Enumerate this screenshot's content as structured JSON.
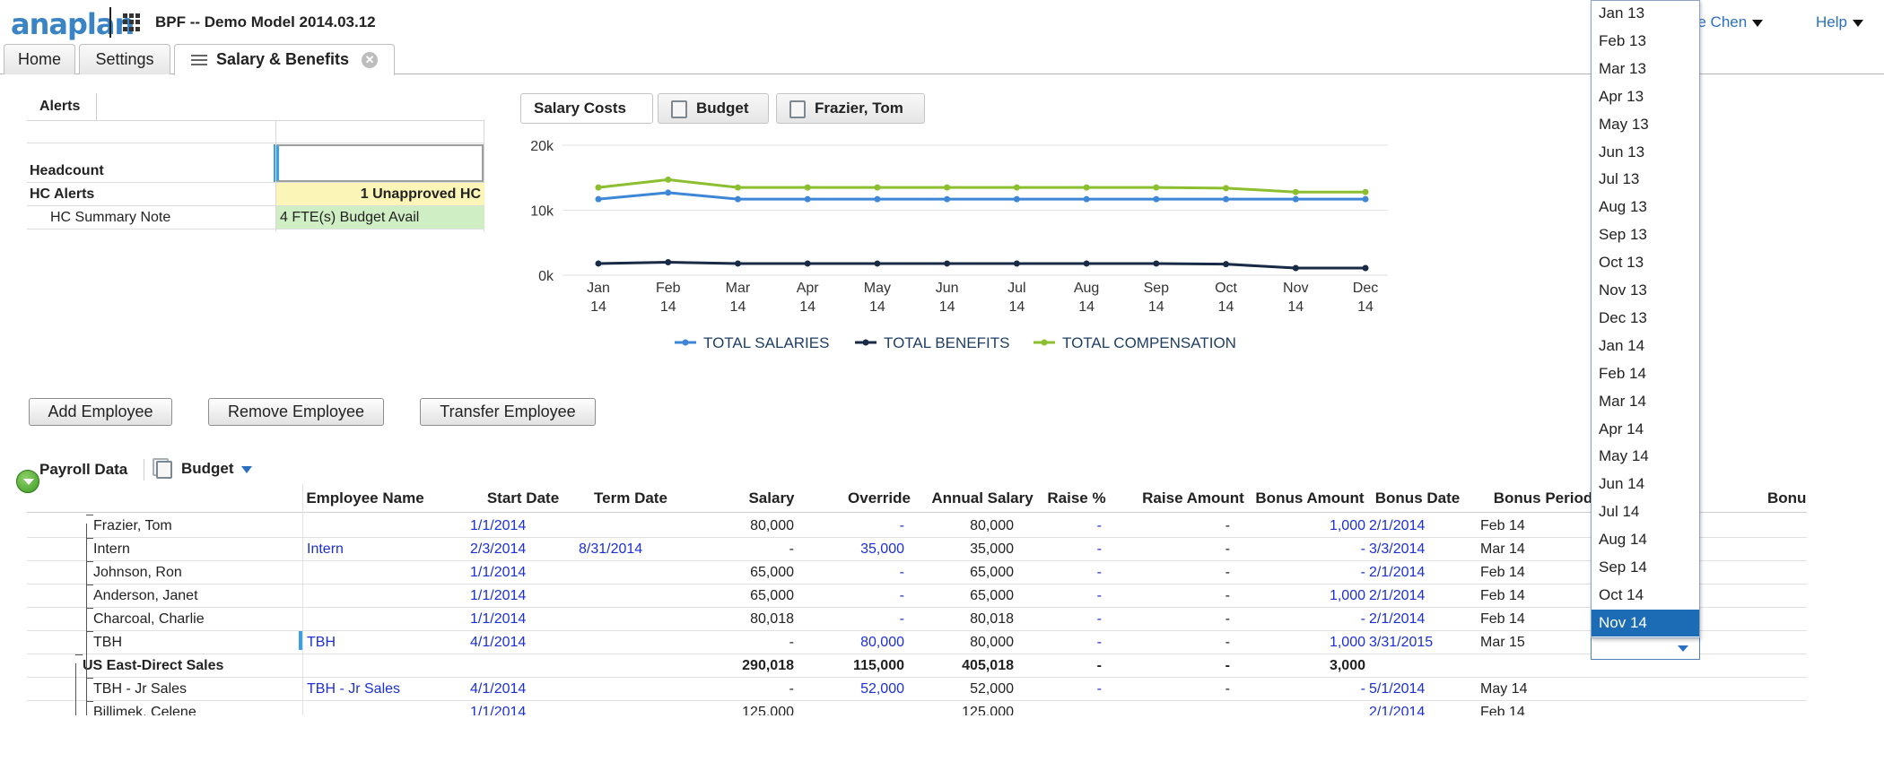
{
  "app": {
    "logo": "anaplan",
    "model_name": "BPF -- Demo Model 2014.03.12",
    "user_label": "onne Chen",
    "help_label": "Help"
  },
  "tabs": [
    {
      "label": "Home"
    },
    {
      "label": "Settings"
    },
    {
      "label": "Salary & Benefits"
    }
  ],
  "alerts": {
    "title": "Alerts",
    "rows": [
      {
        "label": "",
        "value": ""
      },
      {
        "label": "Headcount",
        "value": ""
      },
      {
        "label": "HC Alerts",
        "value": "1 Unapproved HC"
      },
      {
        "label": "HC Summary Note",
        "value": "4 FTE(s) Budget Avail"
      }
    ]
  },
  "chart_toolbar": {
    "chart_label": "Salary Costs",
    "budget_label": "Budget",
    "employee_label": "Frazier, Tom"
  },
  "chart_data": {
    "type": "line",
    "title": "",
    "xlabel": "",
    "ylabel": "",
    "categories": [
      "Jan 14",
      "Feb 14",
      "Mar 14",
      "Apr 14",
      "May 14",
      "Jun 14",
      "Jul 14",
      "Aug 14",
      "Sep 14",
      "Oct 14",
      "Nov 14",
      "Dec 14"
    ],
    "y_ticks": [
      "0k",
      "10k",
      "20k"
    ],
    "ylim": [
      0,
      20000
    ],
    "grid": true,
    "legend_position": "bottom",
    "series": [
      {
        "name": "TOTAL SALARIES",
        "color": "#3d87d6",
        "values": [
          11700,
          12700,
          11700,
          11700,
          11700,
          11700,
          11700,
          11700,
          11700,
          11700,
          11700,
          11700
        ]
      },
      {
        "name": "TOTAL BENEFITS",
        "color": "#182a45",
        "values": [
          1800,
          2000,
          1800,
          1800,
          1800,
          1800,
          1800,
          1800,
          1800,
          1700,
          1100,
          1100
        ]
      },
      {
        "name": "TOTAL COMPENSATION",
        "color": "#8cbf2f",
        "values": [
          13500,
          14700,
          13500,
          13500,
          13500,
          13500,
          13500,
          13500,
          13500,
          13400,
          12800,
          12800
        ]
      }
    ]
  },
  "buttons": {
    "add": "Add Employee",
    "remove": "Remove Employee",
    "transfer": "Transfer Employee"
  },
  "payroll": {
    "title": "Payroll Data",
    "version": "Budget",
    "columns": [
      "Employee Name",
      "Start Date",
      "Term Date",
      "Salary",
      "Override",
      "Annual Salary",
      "Raise %",
      "Raise Amount",
      "Bonus Amount",
      "Bonus Date",
      "Bonus Period",
      "Bonu"
    ],
    "rows": [
      {
        "name": "Frazier, Tom",
        "employee_name": "",
        "start": "1/1/2014",
        "term": "",
        "salary": "80,000",
        "override": "-",
        "annual": "80,000",
        "raise_pct": "-",
        "raise_amt": "-",
        "bonus_amt": "1,000",
        "bonus_date": "2/1/2014",
        "bonus_period": "Feb 14"
      },
      {
        "name": "Intern",
        "employee_name": "Intern",
        "start": "2/3/2014",
        "term": "8/31/2014",
        "salary": "-",
        "override": "35,000",
        "annual": "35,000",
        "raise_pct": "-",
        "raise_amt": "-",
        "bonus_amt": "-",
        "bonus_date": "3/3/2014",
        "bonus_period": "Mar 14"
      },
      {
        "name": "Johnson, Ron",
        "employee_name": "",
        "start": "1/1/2014",
        "term": "",
        "salary": "65,000",
        "override": "-",
        "annual": "65,000",
        "raise_pct": "-",
        "raise_amt": "-",
        "bonus_amt": "-",
        "bonus_date": "2/1/2014",
        "bonus_period": "Feb 14"
      },
      {
        "name": "Anderson, Janet",
        "employee_name": "",
        "start": "1/1/2014",
        "term": "",
        "salary": "65,000",
        "override": "-",
        "annual": "65,000",
        "raise_pct": "-",
        "raise_amt": "-",
        "bonus_amt": "1,000",
        "bonus_date": "2/1/2014",
        "bonus_period": "Feb 14"
      },
      {
        "name": "Charcoal, Charlie",
        "employee_name": "",
        "start": "1/1/2014",
        "term": "",
        "salary": "80,018",
        "override": "-",
        "annual": "80,018",
        "raise_pct": "-",
        "raise_amt": "-",
        "bonus_amt": "-",
        "bonus_date": "2/1/2014",
        "bonus_period": "Feb 14"
      },
      {
        "name": "TBH",
        "employee_name": "TBH",
        "start": "4/1/2014",
        "term": "",
        "salary": "-",
        "override": "80,000",
        "annual": "80,000",
        "raise_pct": "-",
        "raise_amt": "-",
        "bonus_amt": "1,000",
        "bonus_date": "3/31/2015",
        "bonus_period": "Mar 15"
      },
      {
        "name": "US East-Direct Sales",
        "employee_name": "",
        "start": "",
        "term": "",
        "salary": "290,018",
        "override": "115,000",
        "annual": "405,018",
        "raise_pct": "-",
        "raise_amt": "-",
        "bonus_amt": "3,000",
        "bonus_date": "",
        "bonus_period": ""
      },
      {
        "name": "TBH - Jr Sales",
        "employee_name": "TBH - Jr Sales",
        "start": "4/1/2014",
        "term": "",
        "salary": "-",
        "override": "52,000",
        "annual": "52,000",
        "raise_pct": "-",
        "raise_amt": "-",
        "bonus_amt": "-",
        "bonus_date": "5/1/2014",
        "bonus_period": "May 14"
      },
      {
        "name": "Billimek, Celene",
        "employee_name": "",
        "start": "1/1/2014",
        "term": "",
        "salary": "125,000",
        "override": "",
        "annual": "125,000",
        "raise_pct": "",
        "raise_amt": "",
        "bonus_amt": "",
        "bonus_date": "2/1/2014",
        "bonus_period": "Feb 14"
      }
    ]
  },
  "month_dropdown": {
    "items": [
      "Jan 13",
      "Feb 13",
      "Mar 13",
      "Apr 13",
      "May 13",
      "Jun 13",
      "Jul 13",
      "Aug 13",
      "Sep 13",
      "Oct 13",
      "Nov 13",
      "Dec 13",
      "Jan 14",
      "Feb 14",
      "Mar 14",
      "Apr 14",
      "May 14",
      "Jun 14",
      "Jul 14",
      "Aug 14",
      "Sep 14",
      "Oct 14",
      "Nov 14"
    ],
    "selected": "Nov 14"
  }
}
